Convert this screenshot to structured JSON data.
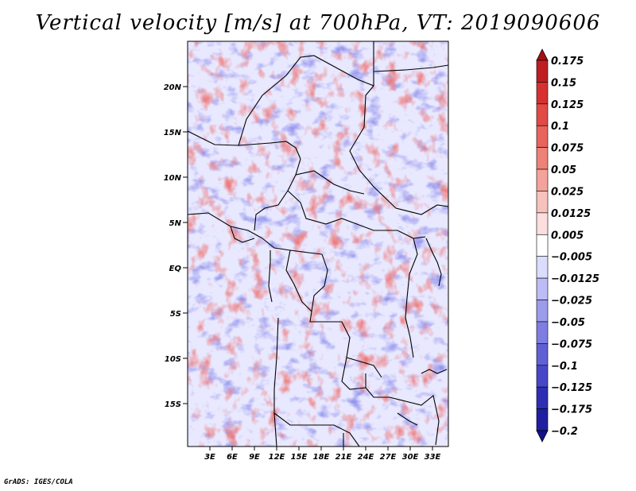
{
  "title": "Vertical velocity [m/s] at 700hPa, VT: 2019090606",
  "credit": "GrADS: IGES/COLA",
  "map": {
    "lat_labels": [
      "20N",
      "15N",
      "10N",
      "5N",
      "EQ",
      "5S",
      "10S",
      "15S"
    ],
    "lon_labels": [
      "3E",
      "6E",
      "9E",
      "12E",
      "15E",
      "18E",
      "21E",
      "24E",
      "27E",
      "30E",
      "33E"
    ]
  },
  "colorbar": {
    "levels": [
      "0.175",
      "0.15",
      "0.125",
      "0.1",
      "0.075",
      "0.05",
      "0.025",
      "0.0125",
      "0.005",
      "-0.005",
      "-0.0125",
      "-0.025",
      "-0.05",
      "-0.075",
      "-0.1",
      "-0.125",
      "-0.175",
      "-0.2"
    ],
    "colors": [
      "#a50f15",
      "#be1e22",
      "#d73030",
      "#e24a45",
      "#e8645c",
      "#ee8178",
      "#f4a39b",
      "#f8c2bc",
      "#fcdede",
      "#ffffff",
      "#dcdcff",
      "#bcbcf7",
      "#9c9ced",
      "#7d7de2",
      "#6060d6",
      "#4747c8",
      "#2e2eb5",
      "#1f1fa0",
      "#15128a"
    ]
  }
}
